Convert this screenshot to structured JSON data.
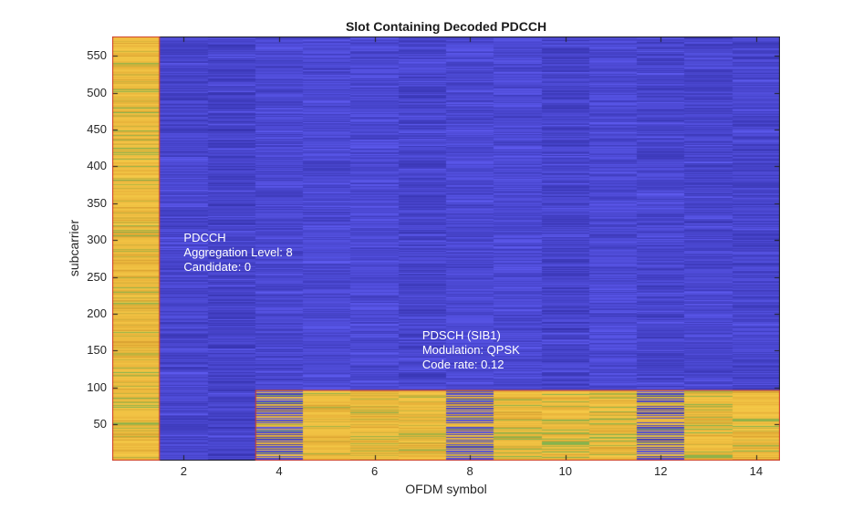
{
  "chart_data": {
    "type": "heatmap",
    "title": "Slot Containing Decoded PDCCH",
    "xlabel": "OFDM symbol",
    "ylabel": "subcarrier",
    "xlim": [
      0.5,
      14.5
    ],
    "ylim": [
      0.5,
      576.5
    ],
    "x_ticks": [
      2,
      4,
      6,
      8,
      10,
      12,
      14
    ],
    "y_ticks": [
      50,
      100,
      150,
      200,
      250,
      300,
      350,
      400,
      450,
      500,
      550
    ],
    "num_symbols": 14,
    "num_subcarriers": 576,
    "grid": false,
    "legend": "none",
    "regions": [
      {
        "name": "pdcch-region",
        "symbols": [
          1,
          1
        ],
        "subcarriers": [
          1,
          576
        ],
        "fill": "yellow",
        "outline": "red"
      },
      {
        "name": "pdsch-region",
        "symbols": [
          4,
          14
        ],
        "subcarriers": [
          1,
          96
        ],
        "fill": "yellow",
        "outline": "red",
        "dmrs_symbols": [
          4,
          8,
          12
        ]
      }
    ],
    "annotations": [
      {
        "name": "pdcch-annotation",
        "lines": [
          "PDCCH",
          "Aggregation Level: 8",
          "Candidate: 0"
        ],
        "x": 2.0,
        "y": 313,
        "color": "#ffffff"
      },
      {
        "name": "pdsch-annotation",
        "lines": [
          "PDSCH (SIB1)",
          "Modulation: QPSK",
          "Code rate: 0.12"
        ],
        "x": 7.0,
        "y": 180,
        "color": "#ffffff"
      }
    ],
    "colors": {
      "background_fill": "#403cd1",
      "blue_dark": "#322fa8",
      "blue_light": "#5f5cf2",
      "yellow_base": "#e7b139",
      "yellow_light": "#f6ca48",
      "yellow_dark": "#d49d2f",
      "green_row": "#7fb34f",
      "olive_row": "#b3b23e",
      "outline_red": "#cd3a2b",
      "axis": "#1f1f1f",
      "tick_text": "#262626",
      "annotation_text": "#ffffff"
    }
  }
}
